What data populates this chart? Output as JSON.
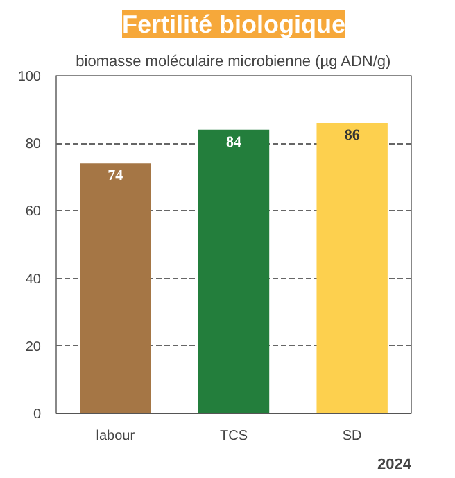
{
  "chart_data": {
    "type": "bar",
    "title": "Fertilité biologique",
    "subtitle": "biomasse moléculaire microbienne (µg ADN/g)",
    "categories": [
      "labour",
      "TCS",
      "SD"
    ],
    "values": [
      74,
      84,
      86
    ],
    "colors": [
      "#a57645",
      "#237e3c",
      "#fdd04e"
    ],
    "ylim": [
      0,
      100
    ],
    "yticks": [
      0,
      20,
      40,
      60,
      80,
      100
    ],
    "grid": "y",
    "data_labels": true,
    "annotations": [
      "2024"
    ]
  }
}
